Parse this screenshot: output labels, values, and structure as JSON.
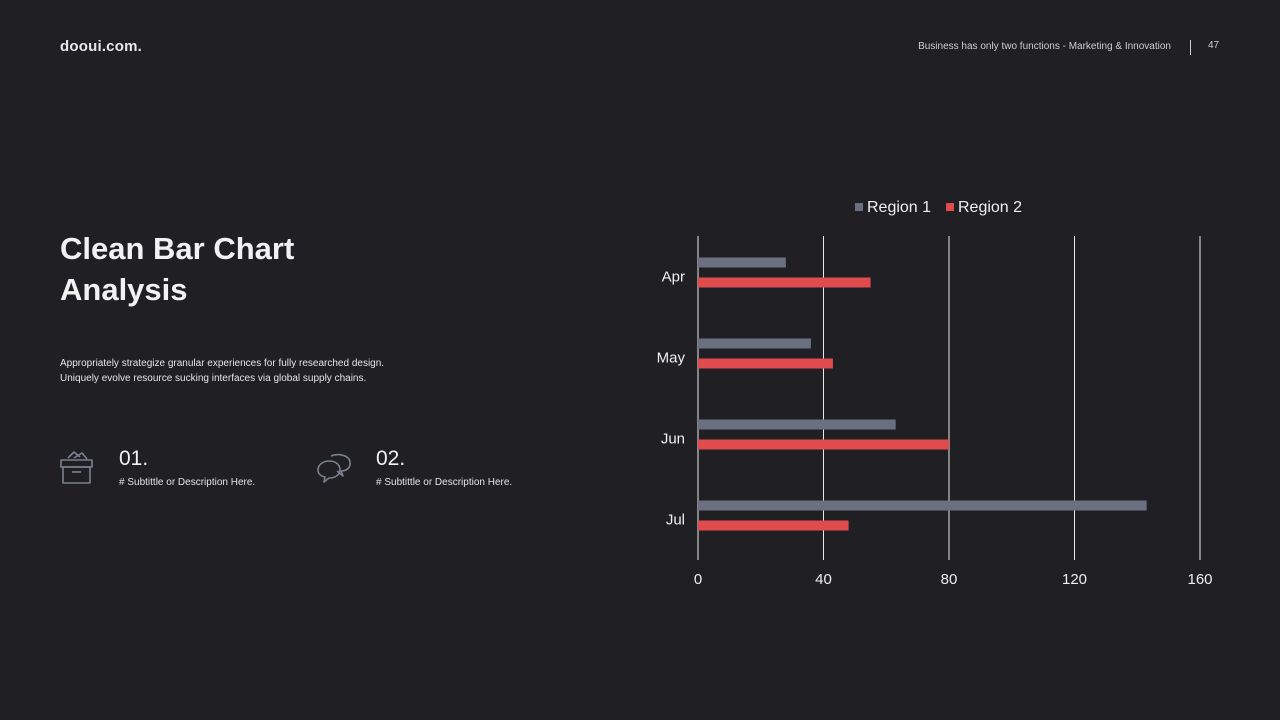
{
  "header": {
    "brand": "dooui.com.",
    "tagline": "Business has only two functions - Marketing & Innovation",
    "page_number": "47"
  },
  "main": {
    "title_line1": "Clean Bar Chart",
    "title_line2": "Analysis",
    "description_line1": "Appropriately strategize granular experiences for fully researched design.",
    "description_line2": "Uniquely evolve resource sucking interfaces via global supply chains."
  },
  "features": [
    {
      "number": "01.",
      "subtitle": "# Subtittle or Description Here.",
      "icon": "archive-box-icon"
    },
    {
      "number": "02.",
      "subtitle": "# Subtittle or Description Here.",
      "icon": "chat-bubbles-icon"
    }
  ],
  "colors": {
    "background": "#1f1f24",
    "region1": "#6b7080",
    "region2": "#e04b4e"
  },
  "chart_data": {
    "type": "bar",
    "orientation": "horizontal",
    "categories": [
      "Apr",
      "May",
      "Jun",
      "Jul"
    ],
    "series": [
      {
        "name": "Region 1",
        "values": [
          28,
          36,
          63,
          143
        ]
      },
      {
        "name": "Region 2",
        "values": [
          55,
          43,
          80,
          48
        ]
      }
    ],
    "xlim": [
      0,
      160
    ],
    "xticks": [
      "0",
      "40",
      "80",
      "120",
      "160"
    ],
    "grid": true,
    "legend": "top"
  }
}
